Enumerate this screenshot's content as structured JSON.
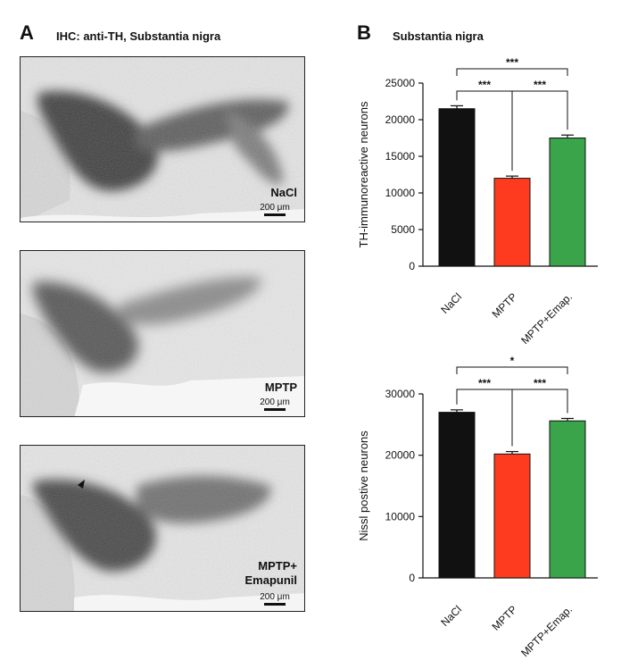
{
  "panel_a": {
    "letter": "A",
    "title": "IHC: anti-TH, Substantia nigra",
    "images": [
      {
        "label_lines": [
          "NaCl"
        ],
        "scale_text": "200 μm"
      },
      {
        "label_lines": [
          "MPTP"
        ],
        "scale_text": "200 μm"
      },
      {
        "label_lines": [
          "MPTP+",
          "Emapunil"
        ],
        "scale_text": "200 μm"
      }
    ]
  },
  "panel_b": {
    "letter": "B",
    "title": "Substantia nigra"
  },
  "chart_data": [
    {
      "type": "bar",
      "title": "",
      "xlabel": "",
      "ylabel": "TH-immunoreactive neurons",
      "categories": [
        "NaCl",
        "MPTP",
        "MPTP+Emap."
      ],
      "values": [
        21500,
        12000,
        17500
      ],
      "errors": [
        400,
        300,
        400
      ],
      "colors": [
        "#111111",
        "#ff3b1f",
        "#3aa44a"
      ],
      "ylim": [
        0,
        25000
      ],
      "yticks": [
        0,
        5000,
        10000,
        15000,
        20000,
        25000
      ],
      "significance": [
        {
          "from": 0,
          "to": 1,
          "label": "***"
        },
        {
          "from": 1,
          "to": 2,
          "label": "***"
        },
        {
          "from": 0,
          "to": 2,
          "label": "***"
        }
      ]
    },
    {
      "type": "bar",
      "title": "",
      "xlabel": "",
      "ylabel": "Nissl postive neurons",
      "categories": [
        "NaCl",
        "MPTP",
        "MPTP+Emap."
      ],
      "values": [
        27000,
        20200,
        25600
      ],
      "errors": [
        400,
        400,
        400
      ],
      "colors": [
        "#111111",
        "#ff3b1f",
        "#3aa44a"
      ],
      "ylim": [
        0,
        30000
      ],
      "yticks": [
        0,
        10000,
        20000,
        30000
      ],
      "significance": [
        {
          "from": 0,
          "to": 1,
          "label": "***"
        },
        {
          "from": 1,
          "to": 2,
          "label": "***"
        },
        {
          "from": 0,
          "to": 2,
          "label": "*"
        }
      ]
    }
  ]
}
